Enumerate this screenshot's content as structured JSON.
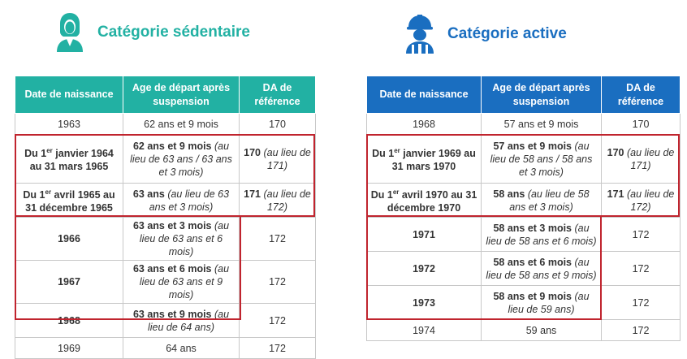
{
  "left": {
    "heading": "Catégorie sédentaire",
    "icon": "female-person-icon",
    "header_color": "#22b1a3",
    "columns": [
      "Date de naissance",
      "Age de départ après suspension",
      "DA de référence"
    ],
    "rows": [
      {
        "date": "1963",
        "age": "62 ans et 9 mois",
        "age_note": "",
        "da": "170",
        "da_note": ""
      },
      {
        "date_a": "Du 1",
        "date_sup": "er",
        "date_b": " janvier 1964 au 31 mars 1965",
        "age": "62 ans et 9 mois",
        "age_note": " (au lieu de 63 ans / 63 ans et 3 mois)",
        "da": "170",
        "da_note": " (au lieu de 171)"
      },
      {
        "date_a": "Du 1",
        "date_sup": "er",
        "date_b": " avril 1965 au 31 décembre 1965",
        "age": "63 ans",
        "age_note": " (au lieu de 63 ans et 3 mois)",
        "da": "171",
        "da_note": " (au lieu de 172)"
      },
      {
        "date": "1966",
        "age": "63 ans et 3 mois",
        "age_note": " (au lieu de 63 ans et 6 mois)",
        "da": "172",
        "da_note": ""
      },
      {
        "date": "1967",
        "age": "63 ans et 6 mois",
        "age_note": " (au lieu de 63 ans et 9 mois)",
        "da": "172",
        "da_note": ""
      },
      {
        "date": "1968",
        "age": "63 ans et 9 mois",
        "age_note": " (au lieu de 64 ans)",
        "da": "172",
        "da_note": ""
      },
      {
        "date": "1969",
        "age": "64 ans",
        "age_note": "",
        "da": "172",
        "da_note": ""
      }
    ]
  },
  "right": {
    "heading": "Catégorie active",
    "icon": "construction-worker-icon",
    "header_color": "#1a6ec0",
    "columns": [
      "Date de naissance",
      "Age de départ après suspension",
      "DA de référence"
    ],
    "rows": [
      {
        "date": "1968",
        "age": "57 ans et 9 mois",
        "age_note": "",
        "da": "170",
        "da_note": ""
      },
      {
        "date_a": "Du 1",
        "date_sup": "er",
        "date_b": " janvier 1969 au 31 mars 1970",
        "age": "57 ans et 9 mois",
        "age_note": " (au lieu de 58 ans / 58 ans et 3 mois)",
        "da": "170",
        "da_note": " (au lieu de 171)"
      },
      {
        "date_a": "Du 1",
        "date_sup": "er",
        "date_b": " avril 1970 au 31 décembre 1970",
        "age": "58 ans",
        "age_note": " (au lieu de 58 ans et 3 mois)",
        "da": "171",
        "da_note": " (au lieu de 172)"
      },
      {
        "date": "1971",
        "age": "58 ans et 3 mois",
        "age_note": " (au lieu de 58 ans et 6 mois)",
        "da": "172",
        "da_note": ""
      },
      {
        "date": "1972",
        "age": "58 ans et 6 mois",
        "age_note": " (au lieu de 58 ans et 9 mois)",
        "da": "172",
        "da_note": ""
      },
      {
        "date": "1973",
        "age": "58 ans et 9 mois",
        "age_note": " (au lieu de 59 ans)",
        "da": "172",
        "da_note": ""
      },
      {
        "date": "1974",
        "age": "59 ans",
        "age_note": "",
        "da": "172",
        "da_note": ""
      }
    ]
  }
}
